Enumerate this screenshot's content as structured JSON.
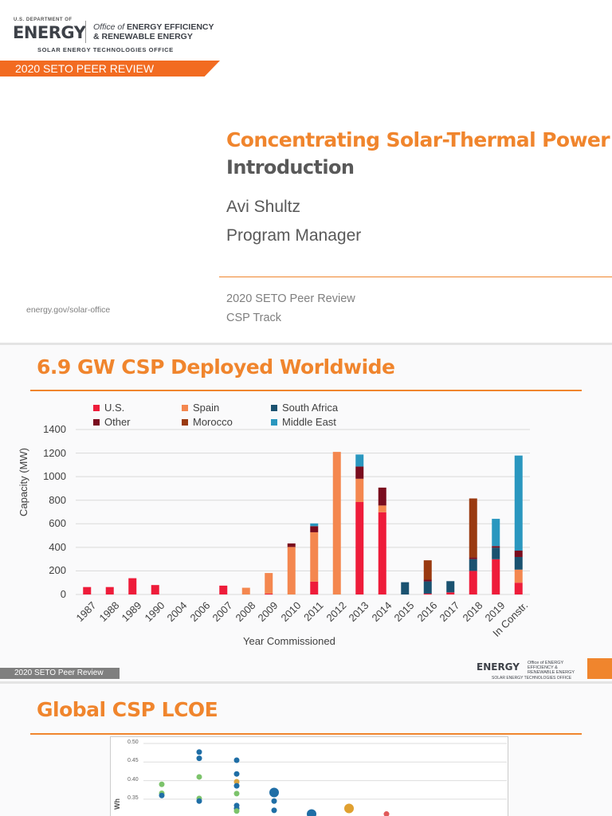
{
  "slide1": {
    "logo": {
      "dept": "U.S. DEPARTMENT OF",
      "energy": "ENERGY",
      "office_prefix": "Office of",
      "office_line1": "ENERGY EFFICIENCY",
      "office_line2": "& RENEWABLE ENERGY",
      "seto": "SOLAR ENERGY TECHNOLOGIES OFFICE"
    },
    "banner": "2020 SETO PEER REVIEW",
    "title": "Concentrating Solar-Thermal Power",
    "subtitle": "Introduction",
    "presenter": "Avi Shultz",
    "role": "Program Manager",
    "event": "2020 SETO Peer Review",
    "track": "CSP Track",
    "website": "energy.gov/solar-office"
  },
  "slide2": {
    "title": "6.9 GW CSP Deployed Worldwide",
    "footer_label": "2020 SETO Peer Review",
    "footer_logo": {
      "energy": "ENERGY",
      "office": "Office of ENERGY EFFICIENCY & RENEWABLE ENERGY",
      "seto": "SOLAR ENERGY TECHNOLOGIES OFFICE"
    }
  },
  "slide3": {
    "title": "Global CSP LCOE"
  },
  "colors": {
    "accent": "#f0852d",
    "banner": "#f26b21",
    "footer_gray": "#7f7f7f"
  },
  "chart_data": [
    {
      "type": "bar",
      "stacked": true,
      "title": "",
      "xlabel": "Year Commissioned",
      "ylabel": "Capacity (MW)",
      "ylim": [
        0,
        1400
      ],
      "yticks": [
        0,
        200,
        400,
        600,
        800,
        1000,
        1200,
        1400
      ],
      "grid": true,
      "legend": "top",
      "categories": [
        "1987",
        "1988",
        "1989",
        "1990",
        "2004",
        "2006",
        "2007",
        "2008",
        "2009",
        "2010",
        "2011",
        "2012",
        "2013",
        "2014",
        "2015",
        "2016",
        "2017",
        "2018",
        "2019",
        "In Constr."
      ],
      "series": [
        {
          "name": "U.S.",
          "color": "#ee1c3a",
          "values": [
            63,
            63,
            138,
            80,
            0,
            0,
            75,
            0,
            7,
            0,
            109,
            0,
            785,
            698,
            0,
            7,
            18,
            200,
            299,
            100
          ]
        },
        {
          "name": "Spain",
          "color": "#f4874f",
          "values": [
            0,
            0,
            0,
            0,
            0,
            0,
            0,
            57,
            175,
            403,
            419,
            1210,
            197,
            57,
            0,
            0,
            0,
            0,
            0,
            111
          ]
        },
        {
          "name": "South Africa",
          "color": "#1a5270",
          "values": [
            0,
            0,
            0,
            0,
            0,
            0,
            0,
            0,
            0,
            0,
            0,
            0,
            0,
            0,
            104,
            104,
            95,
            100,
            98,
            107
          ]
        },
        {
          "name": "Other",
          "color": "#7a0c1e",
          "values": [
            0,
            0,
            0,
            0,
            0,
            0,
            0,
            0,
            0,
            30,
            52,
            0,
            104,
            152,
            0,
            14,
            0,
            14,
            14,
            54
          ]
        },
        {
          "name": "Morocco",
          "color": "#9a3a10",
          "values": [
            0,
            0,
            0,
            0,
            0,
            0,
            0,
            0,
            0,
            0,
            0,
            0,
            0,
            0,
            0,
            165,
            0,
            501,
            0,
            0
          ]
        },
        {
          "name": "Middle East",
          "color": "#2a97bf",
          "values": [
            0,
            0,
            0,
            0,
            0,
            0,
            0,
            0,
            0,
            0,
            23,
            0,
            102,
            0,
            0,
            0,
            0,
            0,
            231,
            807
          ]
        }
      ]
    },
    {
      "type": "scatter",
      "ylabel": "Wh",
      "yticks": [
        "0.50",
        "0.45",
        "0.40",
        "0.35"
      ],
      "ylim": [
        0.3,
        0.5
      ],
      "grid": true,
      "points": [
        {
          "x": 1,
          "y": 0.39,
          "color": "#7cc36b"
        },
        {
          "x": 1,
          "y": 0.366,
          "color": "#7cc36b"
        },
        {
          "x": 1,
          "y": 0.36,
          "color": "#1f6ea6"
        },
        {
          "x": 2,
          "y": 0.477,
          "color": "#1f6ea6"
        },
        {
          "x": 2,
          "y": 0.46,
          "color": "#1f6ea6"
        },
        {
          "x": 2,
          "y": 0.41,
          "color": "#7cc36b"
        },
        {
          "x": 2,
          "y": 0.352,
          "color": "#7cc36b"
        },
        {
          "x": 2,
          "y": 0.345,
          "color": "#1f6ea6"
        },
        {
          "x": 3,
          "y": 0.455,
          "color": "#1f6ea6"
        },
        {
          "x": 3,
          "y": 0.418,
          "color": "#1f6ea6"
        },
        {
          "x": 3,
          "y": 0.397,
          "color": "#d9a441"
        },
        {
          "x": 3,
          "y": 0.386,
          "color": "#1f6ea6"
        },
        {
          "x": 3,
          "y": 0.365,
          "color": "#7cc36b"
        },
        {
          "x": 3,
          "y": 0.333,
          "color": "#1f6ea6"
        },
        {
          "x": 3,
          "y": 0.325,
          "color": "#1f6ea6"
        },
        {
          "x": 3,
          "y": 0.318,
          "color": "#7cc36b"
        },
        {
          "x": 4,
          "y": 0.368,
          "color": "#1f6ea6",
          "size": "large"
        },
        {
          "x": 4,
          "y": 0.345,
          "color": "#1f6ea6"
        },
        {
          "x": 4,
          "y": 0.32,
          "color": "#1f6ea6"
        },
        {
          "x": 5,
          "y": 0.31,
          "color": "#1f6ea6",
          "size": "large"
        },
        {
          "x": 6,
          "y": 0.325,
          "color": "#e0a030",
          "size": "large"
        },
        {
          "x": 7,
          "y": 0.31,
          "color": "#e05a5a"
        }
      ]
    }
  ]
}
